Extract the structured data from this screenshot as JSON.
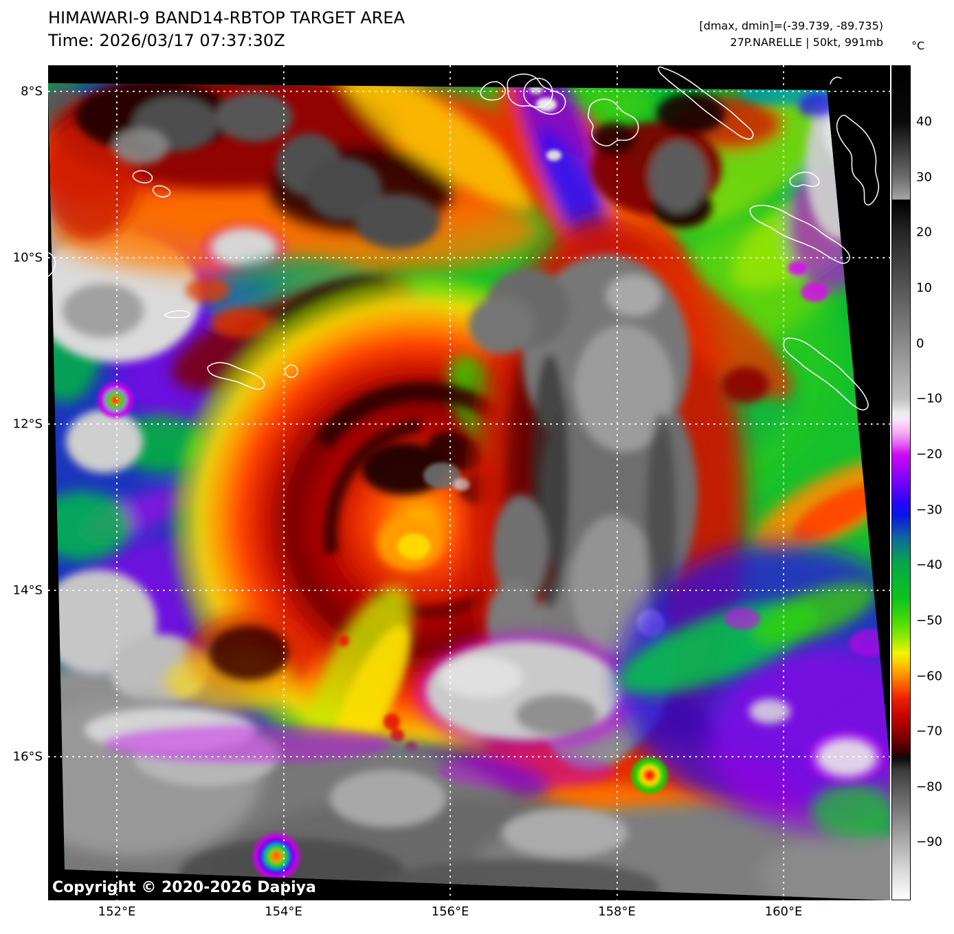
{
  "header": {
    "title": "HIMAWARI-9 BAND14-RBTOP TARGET AREA",
    "time_line": "Time: 2026/03/17 07:37:30Z",
    "annotation_line1": "[dmax, dmin]=(-39.739, -89.735)",
    "annotation_line2": "27P.NARELLE | 50kt, 991mb"
  },
  "colorbar": {
    "unit_label": "°C",
    "ticks": [
      {
        "label": "40",
        "value": 40
      },
      {
        "label": "30",
        "value": 30
      },
      {
        "label": "20",
        "value": 20
      },
      {
        "label": "10",
        "value": 10
      },
      {
        "label": "0",
        "value": 0
      },
      {
        "label": "−10",
        "value": -10
      },
      {
        "label": "−20",
        "value": -20
      },
      {
        "label": "−30",
        "value": -30
      },
      {
        "label": "−40",
        "value": -40
      },
      {
        "label": "−50",
        "value": -50
      },
      {
        "label": "−60",
        "value": -60
      },
      {
        "label": "−70",
        "value": -70
      },
      {
        "label": "−80",
        "value": -80
      },
      {
        "label": "−90",
        "value": -90
      }
    ]
  },
  "axes": {
    "lat_ticks": [
      {
        "label": "8°S",
        "deg": 8
      },
      {
        "label": "10°S",
        "deg": 10
      },
      {
        "label": "12°S",
        "deg": 12
      },
      {
        "label": "14°S",
        "deg": 14
      },
      {
        "label": "16°S",
        "deg": 16
      }
    ],
    "lon_ticks": [
      {
        "label": "152°E",
        "deg": 152
      },
      {
        "label": "154°E",
        "deg": 154
      },
      {
        "label": "156°E",
        "deg": 156
      },
      {
        "label": "158°E",
        "deg": 158
      },
      {
        "label": "160°E",
        "deg": 160
      }
    ]
  },
  "map": {
    "copyright": "Copyright © 2020-2026 Dapiya"
  },
  "colors": {
    "cold_cloud_red": "#e02800",
    "very_cold_gray": "#787878",
    "warm_gray_clouds": "#8a8a8a",
    "background_green": "#00b437",
    "fringe_magenta": "#d800f8"
  }
}
